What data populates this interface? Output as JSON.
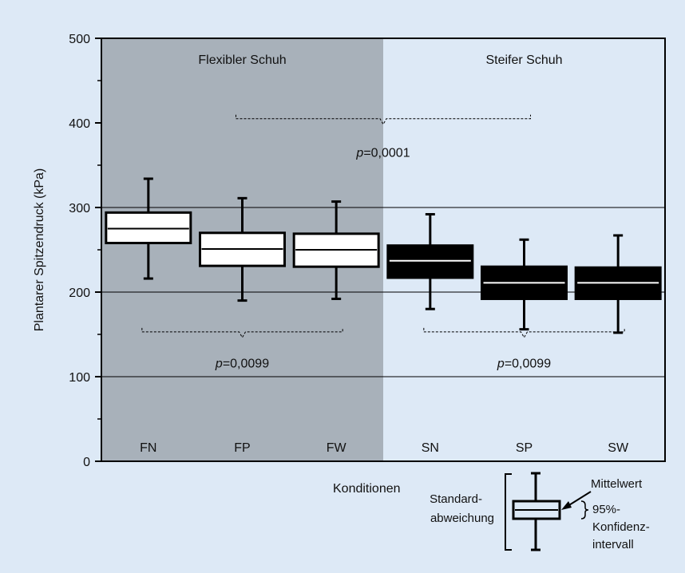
{
  "chart_data": {
    "type": "box",
    "ylabel": "Plantarer Spitzendruck (kPa)",
    "xlabel": "Konditionen",
    "ylim": [
      0,
      500
    ],
    "yticks": [
      0,
      100,
      200,
      300,
      400,
      500
    ],
    "gridlines": [
      100,
      200,
      300
    ],
    "colors": {
      "background": "#dde9f6",
      "flex_region": "#a8b1ba",
      "box_flexible": "#ffffff",
      "box_stiff": "#000000"
    },
    "groups": [
      {
        "label": "Flexibler Schuh",
        "categories": [
          "FN",
          "FP",
          "FW"
        ]
      },
      {
        "label": "Steifer Schuh",
        "categories": [
          "SN",
          "SP",
          "SW"
        ]
      }
    ],
    "boxes": [
      {
        "label": "FN",
        "group": "Flexibler Schuh",
        "min": 216,
        "q1": 258,
        "mean": 275,
        "q3": 294,
        "max": 334
      },
      {
        "label": "FP",
        "group": "Flexibler Schuh",
        "min": 190,
        "q1": 231,
        "mean": 251,
        "q3": 270,
        "max": 311
      },
      {
        "label": "FW",
        "group": "Flexibler Schuh",
        "min": 192,
        "q1": 230,
        "mean": 250,
        "q3": 269,
        "max": 307
      },
      {
        "label": "SN",
        "group": "Steifer Schuh",
        "min": 180,
        "q1": 217,
        "mean": 237,
        "q3": 255,
        "max": 292
      },
      {
        "label": "SP",
        "group": "Steifer Schuh",
        "min": 156,
        "q1": 192,
        "mean": 211,
        "q3": 230,
        "max": 262
      },
      {
        "label": "SW",
        "group": "Steifer Schuh",
        "min": 152,
        "q1": 192,
        "mean": 211,
        "q3": 229,
        "max": 267
      }
    ],
    "comparisons": [
      {
        "from": "FP",
        "to": "SP",
        "y": 405,
        "label_prefix": "p",
        "label_value": "=0,0001",
        "label_y": 360
      },
      {
        "from": "FN",
        "to": "FW",
        "y": 153,
        "label_prefix": "p",
        "label_value": "=0,0099",
        "label_y": 111
      },
      {
        "from": "SN",
        "to": "SW",
        "y": 153,
        "label_prefix": "p",
        "label_value": "=0,0099",
        "label_y": 111
      }
    ],
    "legend": {
      "std_label_line1": "Standard-",
      "std_label_line2": "abweichung",
      "mean_label": "Mittelwert",
      "ci_label_line1": "95%-",
      "ci_label_line2": "Konfidenz-",
      "ci_label_line3": "intervall"
    }
  }
}
